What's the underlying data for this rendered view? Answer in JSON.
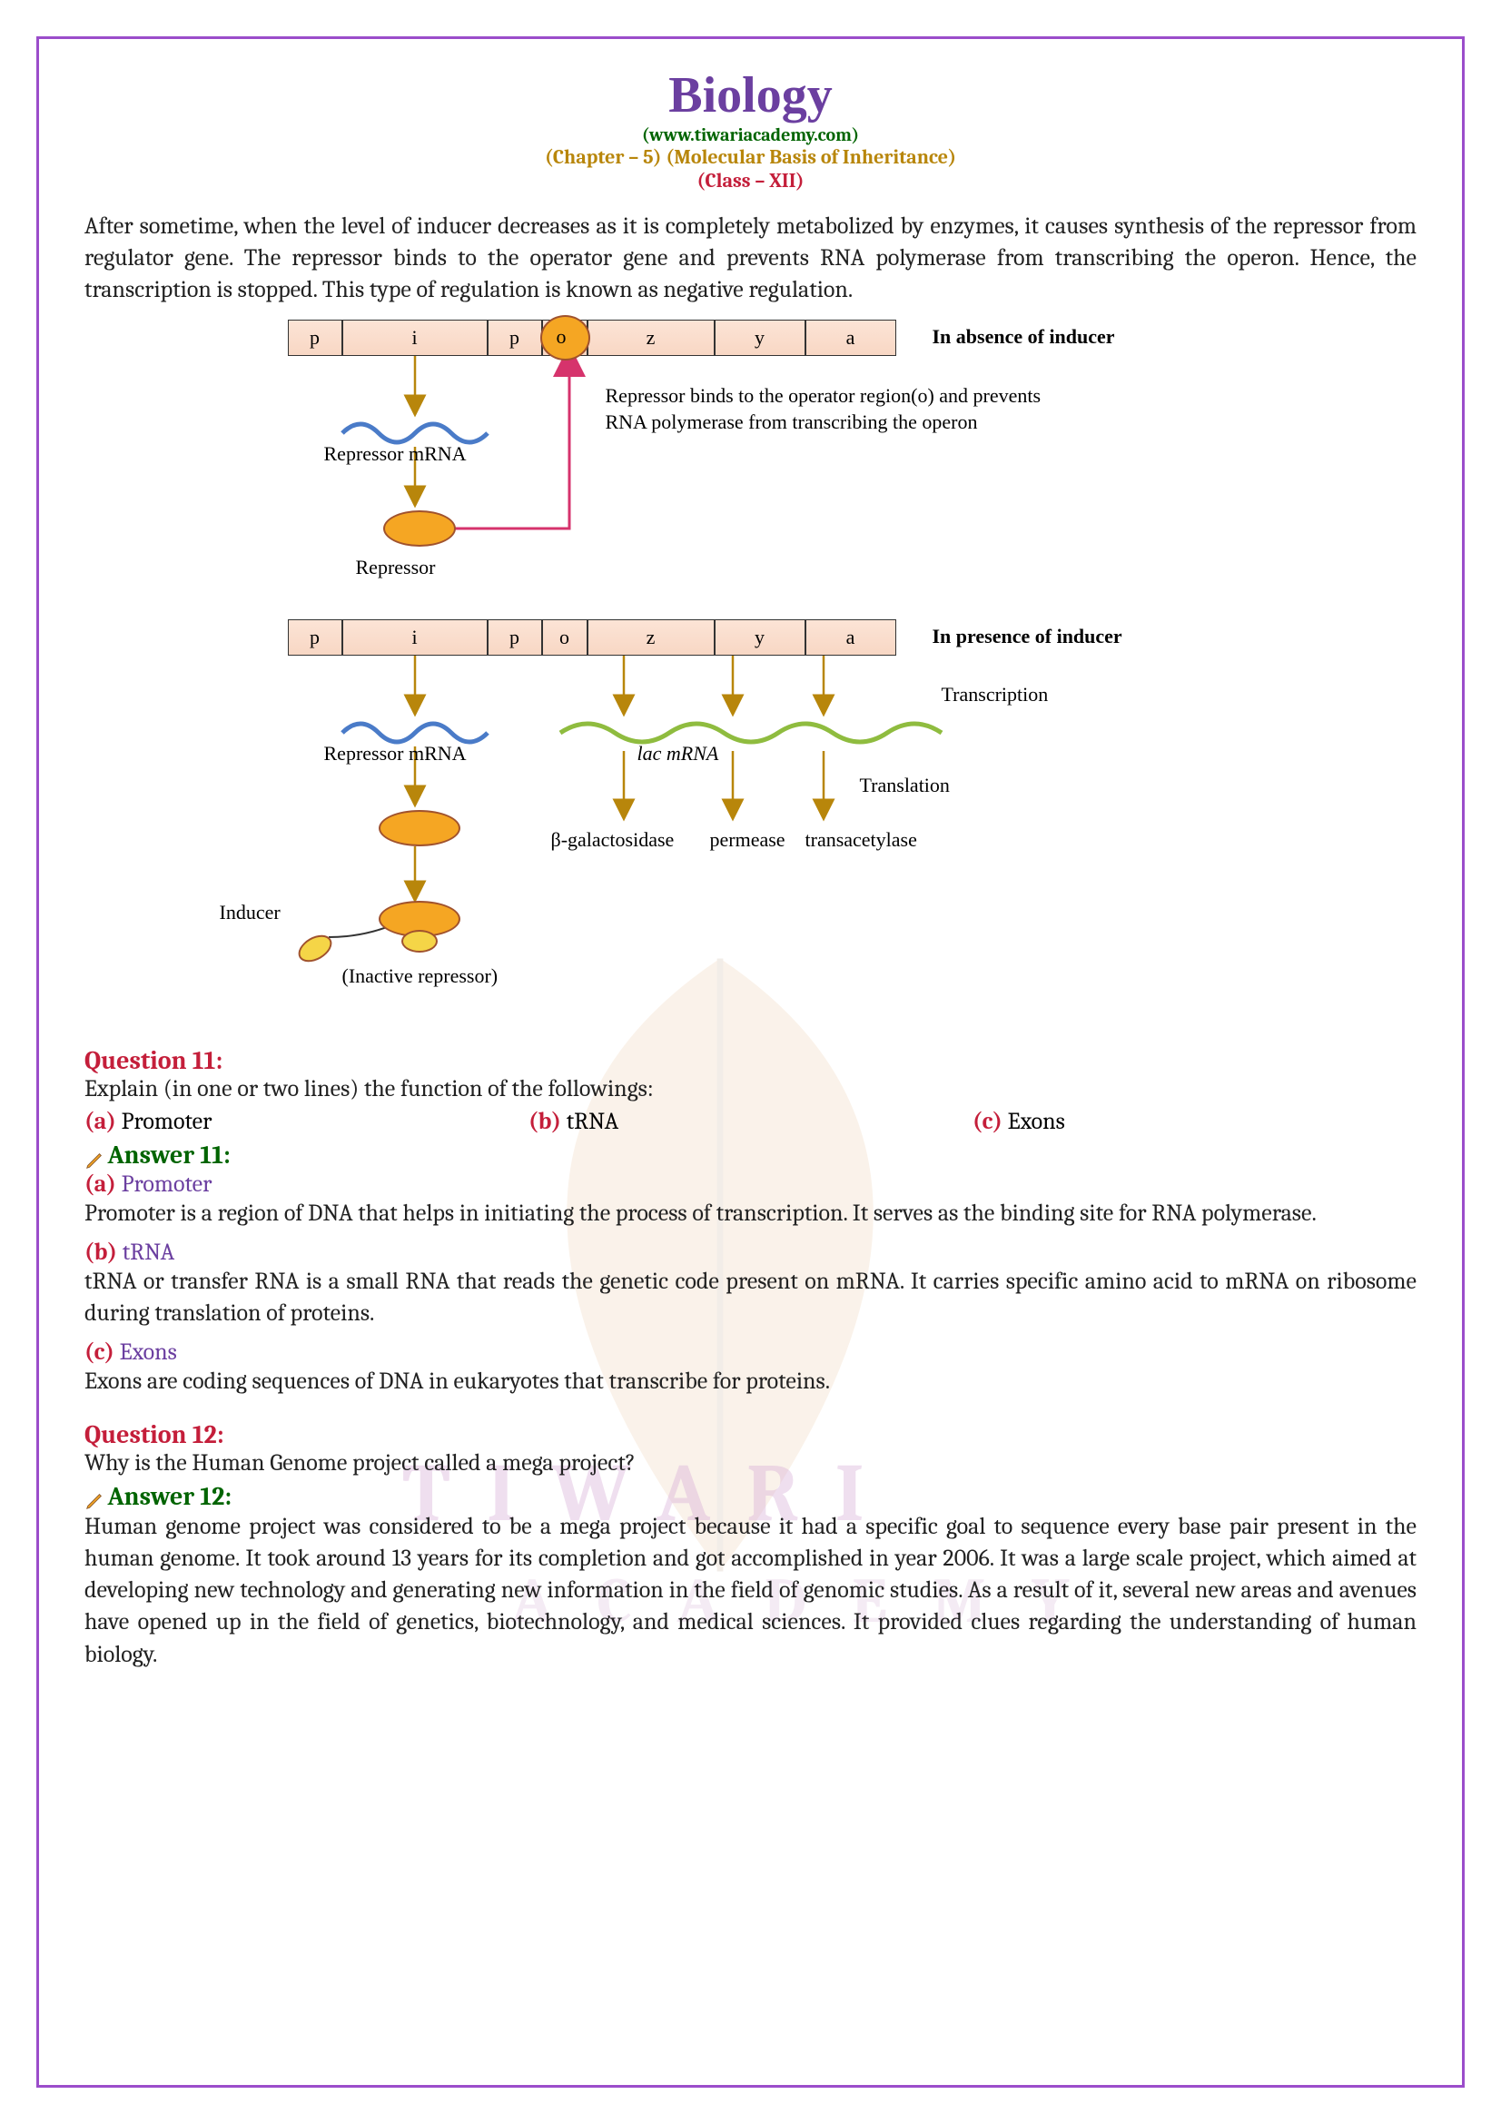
{
  "header": {
    "title": "Biology",
    "url": "(www.tiwariacademy.com)",
    "chapter": "(Chapter – 5) (Molecular Basis of Inheritance)",
    "class": "(Class – XII)"
  },
  "intro_para": "After sometime, when the level of inducer decreases as it is completely metabolized by enzymes, it causes synthesis of the repressor from regulator gene. The repressor binds to the operator gene and prevents RNA polymerase from transcribing the operon. Hence, the transcription is stopped. This type of regulation is known as negative regulation.",
  "diagram": {
    "genes": [
      "p",
      "i",
      "p",
      "o",
      "z",
      "y",
      "a"
    ],
    "gene_widths": [
      60,
      160,
      60,
      50,
      140,
      100,
      100
    ],
    "gene_bg": "#f8d7c4",
    "row1_caption": "In absence of inducer",
    "row2_caption": "In presence of inducer",
    "repressor_mrna": "Repressor mRNA",
    "repressor": "Repressor",
    "repressor_note": "Repressor binds to the operator region(o) and prevents RNA polymerase from transcribing the operon",
    "lac_mrna": "lac mRNA",
    "transcription": "Transcription",
    "translation": "Translation",
    "products": [
      "β-galactosidase",
      "permease",
      "transacetylase"
    ],
    "inducer": "Inducer",
    "inactive": "(Inactive repressor)",
    "colors": {
      "mrna_wave": "#4a7bc8",
      "lac_wave": "#8fbc3f",
      "arrow": "#b8860b",
      "red_arrow": "#d6336c",
      "repressor_fill": "#f5a623",
      "repressor_stroke": "#a0522d"
    }
  },
  "q11": {
    "label": "Question 11:",
    "text": "Explain (in one or two lines) the function of the followings:",
    "opts": [
      {
        "letter": "(a)",
        "text": " Promoter"
      },
      {
        "letter": "(b)",
        "text": " tRNA"
      },
      {
        "letter": "(c)",
        "text": " Exons"
      }
    ],
    "answer_label": "Answer 11:",
    "answers": [
      {
        "letter": "(a)",
        "term": " Promoter",
        "body": "Promoter is a region of DNA that helps in initiating the process of transcription. It serves as the binding site for RNA polymerase."
      },
      {
        "letter": "(b)",
        "term": " tRNA",
        "body": "tRNA or transfer RNA is a small RNA that reads the genetic code present on mRNA. It carries specific amino acid to mRNA on ribosome during translation of proteins."
      },
      {
        "letter": "(c)",
        "term": " Exons",
        "body": "Exons are coding sequences of DNA in eukaryotes that transcribe for proteins."
      }
    ]
  },
  "q12": {
    "label": "Question 12:",
    "text": "Why is the Human Genome project called a mega project?",
    "answer_label": "Answer 12:",
    "body": "Human genome project was considered to be a mega project because it had a specific goal to sequence every base pair present in the human genome. It took around 13 years for its completion and got accomplished in year 2006. It was a large scale project, which aimed at developing new technology and generating new information in the field of genomic studies. As a result of it, several new areas and avenues have opened up in the field of genetics, biotechnology, and medical sciences. It provided clues regarding the understanding of human biology."
  },
  "watermark": {
    "t1": "TIWARI",
    "t2": "ACADEMY"
  }
}
